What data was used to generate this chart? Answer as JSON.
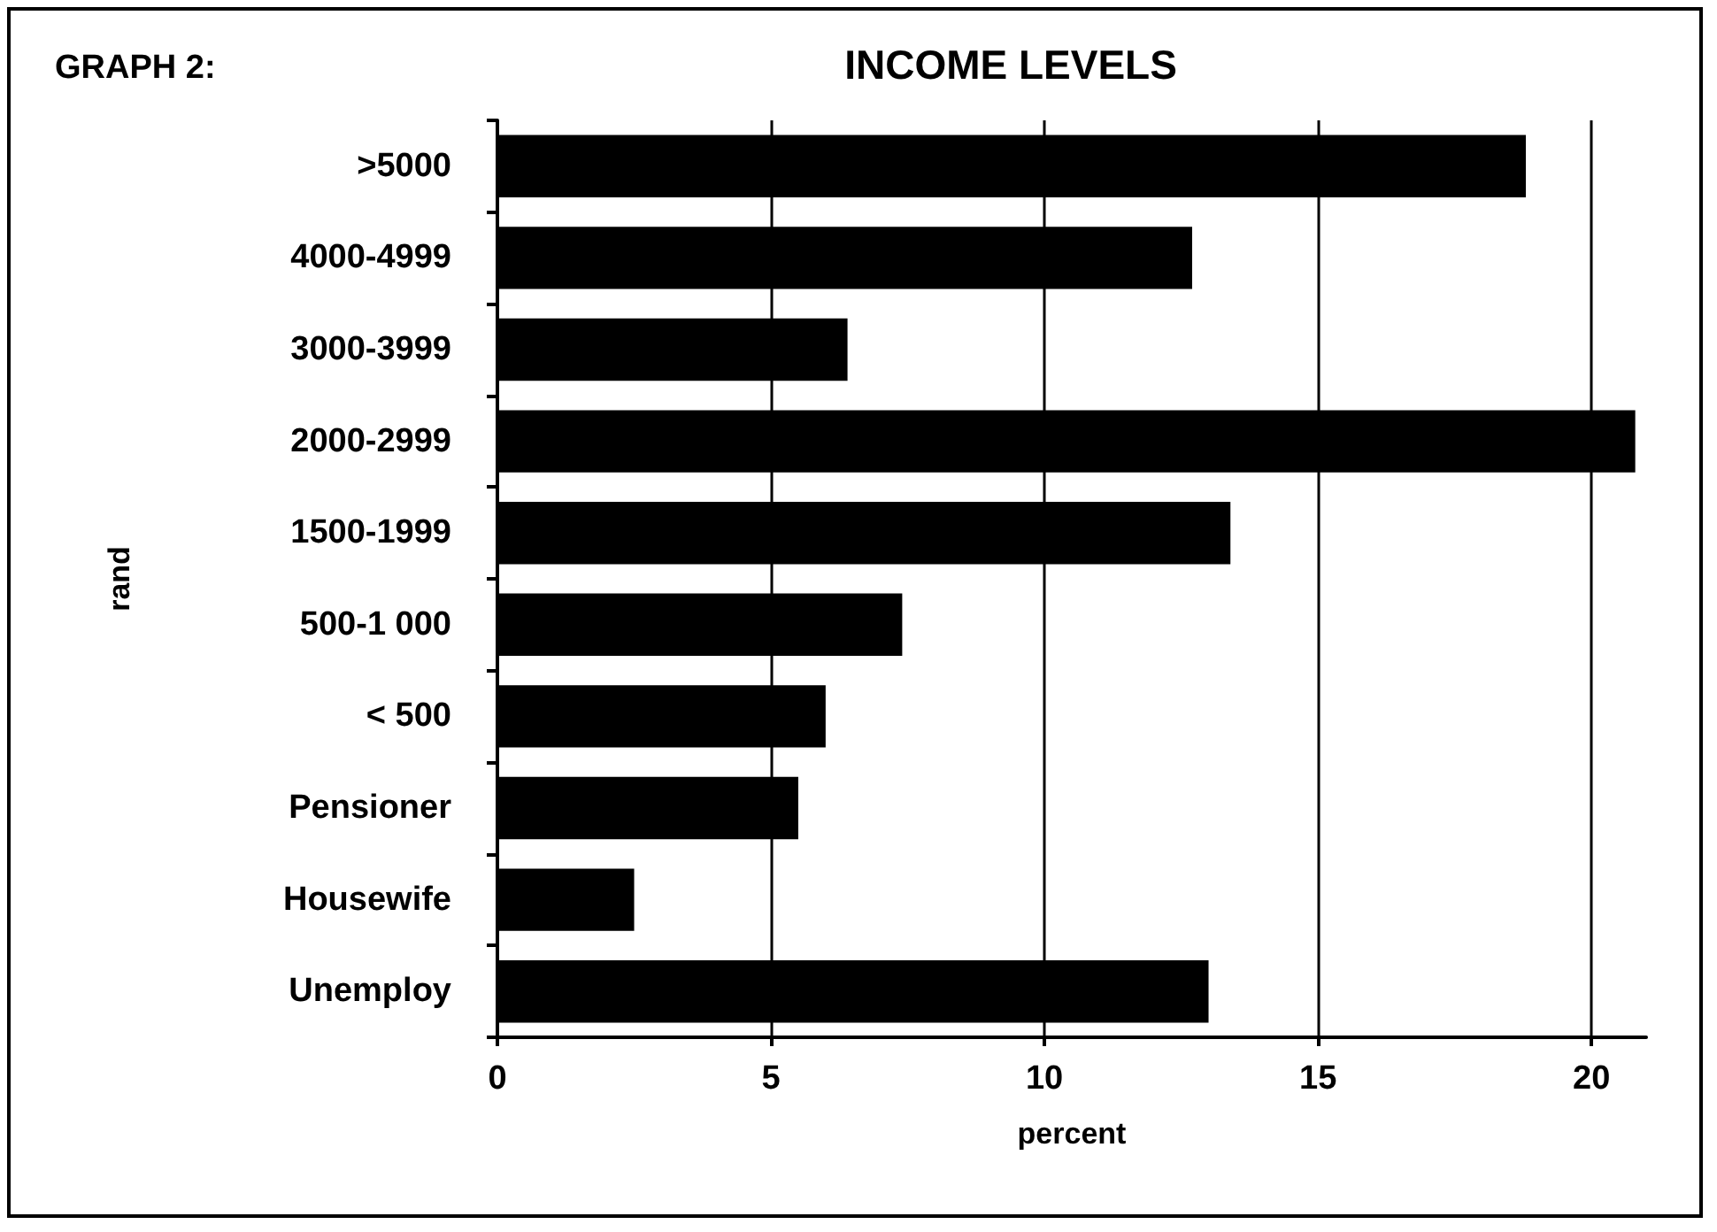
{
  "chart_data": {
    "type": "bar",
    "orientation": "horizontal",
    "title": "INCOME LEVELS",
    "subtitle": "GRAPH 2:",
    "xlabel": "percent",
    "ylabel": "rand",
    "categories": [
      ">5000",
      "4000-4999",
      "3000-3999",
      "2000-2999",
      "1500-1999",
      "500-1 000",
      "< 500",
      "Pensioner",
      "Housewife",
      "Unemploy"
    ],
    "values": [
      18.8,
      12.7,
      6.4,
      20.8,
      13.4,
      7.4,
      6.0,
      5.5,
      2.5,
      13.0
    ],
    "color": "#000000",
    "xlim": [
      0,
      21
    ],
    "xticks": [
      0,
      5,
      10,
      15,
      20
    ],
    "grid": "x"
  }
}
